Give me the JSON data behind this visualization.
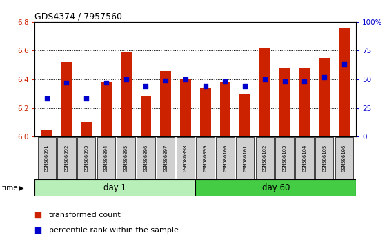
{
  "title": "GDS4374 / 7957560",
  "samples": [
    "GSM586091",
    "GSM586092",
    "GSM586093",
    "GSM586094",
    "GSM586095",
    "GSM586096",
    "GSM586097",
    "GSM586098",
    "GSM586099",
    "GSM586100",
    "GSM586101",
    "GSM586102",
    "GSM586103",
    "GSM586104",
    "GSM586105",
    "GSM586106"
  ],
  "transformed_count": [
    6.05,
    6.52,
    6.1,
    6.38,
    6.59,
    6.28,
    6.46,
    6.4,
    6.34,
    6.38,
    6.3,
    6.62,
    6.48,
    6.48,
    6.55,
    6.76
  ],
  "percentile_rank": [
    33,
    47,
    33,
    47,
    50,
    44,
    49,
    50,
    44,
    48,
    44,
    50,
    48,
    48,
    52,
    63
  ],
  "groups": [
    {
      "label": "day 1",
      "start": 0,
      "end": 8,
      "color": "#B8EEB8"
    },
    {
      "label": "day 60",
      "start": 8,
      "end": 16,
      "color": "#44CC44"
    }
  ],
  "ylim_left": [
    6.0,
    6.8
  ],
  "ylim_right": [
    0,
    100
  ],
  "yticks_left": [
    6.0,
    6.2,
    6.4,
    6.6,
    6.8
  ],
  "yticks_right": [
    0,
    25,
    50,
    75,
    100
  ],
  "ytick_labels_right": [
    "0",
    "25",
    "50",
    "75",
    "100%"
  ],
  "bar_color": "#CC2200",
  "dot_color": "#0000CC",
  "bar_width": 0.55,
  "left_tick_color": "#CC2200",
  "right_tick_color": "#0000CC",
  "legend_red_label": "transformed count",
  "legend_blue_label": "percentile rank within the sample",
  "time_label": "time"
}
